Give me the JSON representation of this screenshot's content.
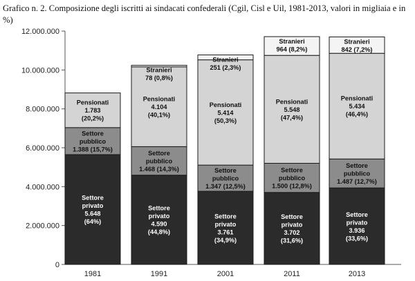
{
  "title": "Grafico n. 2. Composizione degli iscritti ai sindacati confederali (Cgil, Cisl e Uil, 1981-2013, valori in migliaia e in %)",
  "chart_data": {
    "type": "bar",
    "stacked": true,
    "title": "Grafico n. 2. Composizione degli iscritti ai sindacati confederali (Cgil, Cisl e Uil, 1981-2013, valori in migliaia e in %)",
    "xlabel": "",
    "ylabel": "",
    "ylim": [
      0,
      12000000
    ],
    "y_ticks": [
      "0",
      "2.000.000",
      "4.000.000",
      "6.000.000",
      "8.000.000",
      "10.000.000",
      "12.000.000"
    ],
    "y_tick_values": [
      0,
      2000000,
      4000000,
      6000000,
      8000000,
      10000000,
      12000000
    ],
    "categories": [
      "1981",
      "1991",
      "2001",
      "2011",
      "2013"
    ],
    "grid": false,
    "legend": "none",
    "series": [
      {
        "key": "privato",
        "color": "#2b2b2b",
        "text_color": "#ffffff",
        "values": [
          5648000,
          4590000,
          3761000,
          3702000,
          3936000
        ],
        "labels": [
          [
            "Settore",
            "privato",
            "5.648",
            "(64%)"
          ],
          [
            "Settore",
            "privato",
            "4.590",
            "(44,8%)"
          ],
          [
            "Settore",
            "privato",
            "3.761",
            "(34,9%)"
          ],
          [
            "Settore",
            "privato",
            "3.702",
            "(31,6%)"
          ],
          [
            "Settore",
            "privato",
            "3.936",
            "(33,6%)"
          ]
        ]
      },
      {
        "key": "pubblico",
        "color": "#8c8c8c",
        "text_color": "#111111",
        "values": [
          1388000,
          1468000,
          1347000,
          1500000,
          1487000
        ],
        "labels": [
          [
            "Settore",
            "pubblico",
            "1.388 (15,7%)"
          ],
          [
            "Settore",
            "pubblico",
            "1.468 (14,3%)"
          ],
          [
            "Settore",
            "pubblico",
            "1.347 (12,5%)"
          ],
          [
            "Settore",
            "pubblico",
            "1.500 (12,8%)"
          ],
          [
            "Settore",
            "pubblico",
            "1.487 (12,7%)"
          ]
        ]
      },
      {
        "key": "pensionati",
        "color": "#d4d4d4",
        "text_color": "#111111",
        "values": [
          1783000,
          4104000,
          5414000,
          5548000,
          5434000
        ],
        "labels": [
          [
            "Pensionati",
            "1.783",
            "(20,2%)"
          ],
          [
            "Pensionati",
            "4.104",
            "(40,1%)"
          ],
          [
            "Pensionati",
            "5.414",
            "(50,3%)"
          ],
          [
            "Pensionati",
            "5.548",
            "(47,4%)"
          ],
          [
            "Pensionati",
            "5.434",
            "(46,4%)"
          ]
        ]
      },
      {
        "key": "stranieri",
        "color": "#f4f4f4",
        "text_color": "#111111",
        "values": [
          0,
          78000,
          251000,
          964000,
          842000
        ],
        "labels": [
          [],
          [
            "Stranieri",
            "78 (0,8%)"
          ],
          [
            "Stranieri",
            "251 (2,3%)"
          ],
          [
            "Stranieri",
            "964 (8,2%)"
          ],
          [
            "Stranieri",
            "842 (7,2%)"
          ]
        ]
      }
    ]
  }
}
